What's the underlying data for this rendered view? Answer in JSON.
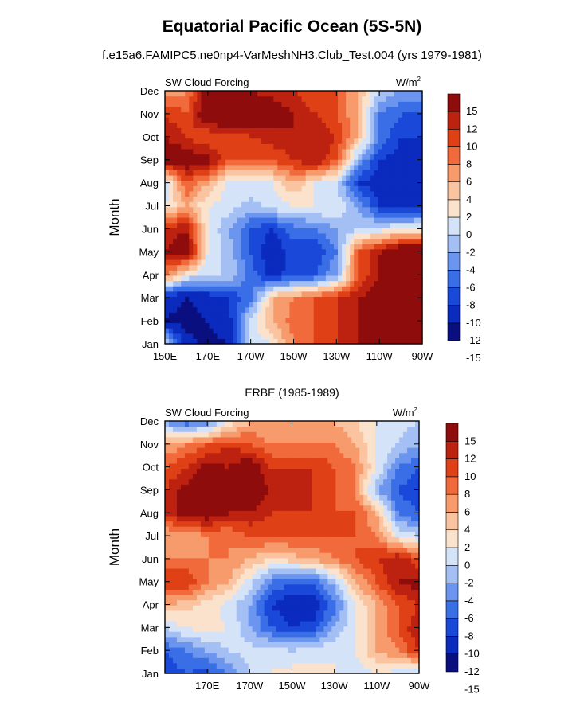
{
  "header": {
    "title": "Equatorial Pacific Ocean (5S-5N)",
    "subtitle": "f.e15a6.FAMIPC5.ne0np4-VarMeshNH3.Club_Test.004 (yrs 1979-1981)"
  },
  "palette": [
    "#0a0f80",
    "#0b2bbe",
    "#1a48d8",
    "#3a6ee6",
    "#6b95ee",
    "#a4bff3",
    "#d4e3f8",
    "#fbe2cd",
    "#fac4a0",
    "#f79a6c",
    "#f06a3c",
    "#df4016",
    "#bd2210",
    "#8e0c0c"
  ],
  "chart_data": [
    {
      "type": "heatmap",
      "title": "",
      "left_label": "SW Cloud Forcing",
      "units": "W/m",
      "units_sup": "2",
      "ylabel": "Month",
      "x": [
        "150E",
        "170E",
        "170W",
        "150W",
        "130W",
        "110W",
        "90W"
      ],
      "y": [
        "Jan",
        "Feb",
        "Mar",
        "Apr",
        "May",
        "Jun",
        "Jul",
        "Aug",
        "Sep",
        "Oct",
        "Nov",
        "Dec"
      ],
      "colorbar_labels": [
        "15",
        "12",
        "10",
        "8",
        "6",
        "4",
        "2",
        "0",
        "-2",
        "-4",
        "-6",
        "-8",
        "-10",
        "-12",
        "-15"
      ],
      "levels": [
        -15,
        -12,
        -10,
        -8,
        -6,
        -4,
        -2,
        0,
        2,
        4,
        6,
        8,
        10,
        12,
        15
      ],
      "grid_lon": [
        150,
        160,
        170,
        180,
        190,
        200,
        210,
        220,
        230,
        240,
        250,
        260,
        270
      ],
      "grid_values": [
        [
          -2,
          -14,
          -16,
          -15,
          -4,
          -2,
          4,
          6,
          8,
          10,
          12,
          16,
          17
        ],
        [
          -15,
          -16,
          -15,
          -13,
          -3,
          2,
          5,
          6,
          8,
          10,
          12,
          16,
          17
        ],
        [
          -14,
          -15,
          -14,
          -12,
          -9,
          2,
          4,
          6,
          8,
          10,
          12,
          14,
          15
        ],
        [
          4,
          -2,
          -4,
          -4,
          -9,
          -13,
          -11,
          -10,
          -6,
          6,
          10,
          14,
          15
        ],
        [
          10,
          12,
          -2,
          -5,
          -10,
          -14,
          -11,
          -12,
          -8,
          6,
          10,
          14,
          14
        ],
        [
          9,
          10,
          -2,
          -6,
          -10,
          -12,
          -9,
          -8,
          -6,
          -4,
          -3,
          -2,
          -2
        ],
        [
          -2,
          2,
          -2,
          -3,
          -5,
          -3,
          -2,
          -2,
          -2,
          -6,
          -12,
          -13,
          -12
        ],
        [
          -4,
          6,
          2,
          -3,
          -2,
          -2,
          2,
          -2,
          -4,
          -12,
          -13,
          -14,
          -14
        ],
        [
          12,
          12,
          11,
          6,
          6,
          6,
          8,
          10,
          6,
          -6,
          -12,
          -13,
          -14
        ],
        [
          10,
          8,
          6,
          6,
          8,
          9,
          10,
          10,
          8,
          2,
          -8,
          -12,
          -12
        ],
        [
          8,
          6,
          13,
          15,
          12,
          12,
          10,
          8,
          6,
          2,
          -8,
          -10,
          -10
        ],
        [
          2,
          4,
          12,
          14,
          10,
          9,
          8,
          6,
          6,
          2,
          -4,
          -6,
          -6
        ]
      ]
    },
    {
      "type": "heatmap",
      "title": "ERBE (1985-1989)",
      "left_label": "SW Cloud Forcing",
      "units": "W/m",
      "units_sup": "2",
      "ylabel": "Month",
      "x": [
        "170E",
        "170W",
        "150W",
        "130W",
        "110W",
        "90W"
      ],
      "y": [
        "Jan",
        "Feb",
        "Mar",
        "Apr",
        "May",
        "Jun",
        "Jul",
        "Aug",
        "Sep",
        "Oct",
        "Nov",
        "Dec"
      ],
      "colorbar_labels": [
        "15",
        "12",
        "10",
        "8",
        "6",
        "4",
        "2",
        "0",
        "-2",
        "-4",
        "-6",
        "-8",
        "-10",
        "-12",
        "-15"
      ],
      "levels": [
        -15,
        -12,
        -10,
        -8,
        -6,
        -4,
        -2,
        0,
        2,
        4,
        6,
        8,
        10,
        12,
        15
      ],
      "grid_lon": [
        150,
        160,
        170,
        180,
        190,
        200,
        210,
        220,
        230,
        240,
        250,
        260,
        270
      ],
      "grid_values": [
        [
          -12,
          -10,
          -11,
          -8,
          -4,
          -2,
          -1,
          -1,
          -2,
          -3,
          -2,
          -3,
          -5
        ],
        [
          -10,
          -8,
          -6,
          -4,
          -3,
          -3,
          -4,
          -3,
          -2,
          -2,
          2,
          4,
          8
        ],
        [
          -4,
          -2,
          -1,
          -2,
          -6,
          -10,
          -12,
          -11,
          -6,
          -2,
          2,
          6,
          10
        ],
        [
          2,
          1,
          -1,
          -3,
          -6,
          -12,
          -14,
          -14,
          -9,
          -2,
          2,
          6,
          8
        ],
        [
          8,
          8,
          4,
          2,
          -3,
          -8,
          -10,
          -10,
          -5,
          2,
          6,
          10,
          11
        ],
        [
          4,
          4,
          4,
          4,
          2,
          0,
          1,
          2,
          4,
          6,
          8,
          10,
          6
        ],
        [
          2,
          2,
          4,
          4,
          6,
          6,
          6,
          6,
          6,
          6,
          4,
          -2,
          -4
        ],
        [
          8,
          12,
          12,
          10,
          10,
          8,
          8,
          8,
          6,
          6,
          2,
          -8,
          -10
        ],
        [
          8,
          11,
          12,
          10,
          12,
          10,
          8,
          8,
          6,
          4,
          -6,
          -10,
          -12
        ],
        [
          6,
          8,
          11,
          10,
          12,
          8,
          8,
          8,
          6,
          4,
          -2,
          -8,
          -10
        ],
        [
          2,
          4,
          6,
          8,
          6,
          4,
          4,
          4,
          4,
          2,
          -2,
          -4,
          -6
        ],
        [
          -6,
          -10,
          -8,
          -2,
          2,
          2,
          2,
          2,
          2,
          0,
          -2,
          -3,
          -4
        ]
      ]
    }
  ]
}
